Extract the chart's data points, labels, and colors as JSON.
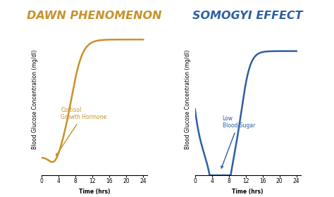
{
  "left_title": "DAWN PHENOMENON",
  "right_title": "SOMOGYI EFFECT",
  "left_color": "#C8922A",
  "right_color": "#2E5FA3",
  "xlabel": "Time (hrs)",
  "ylabel": "Blood Glucose Concentration (mg/dl)",
  "xticks": [
    0,
    4,
    8,
    12,
    16,
    20,
    24
  ],
  "left_annotation": "Cortisol\nGrowth Hormone",
  "right_annotation": "Low\nBlood Sugar",
  "bg_color": "#ffffff",
  "title_fontsize": 11.5,
  "label_fontsize": 5.5,
  "tick_fontsize": 5.5,
  "annot_fontsize": 5.5
}
